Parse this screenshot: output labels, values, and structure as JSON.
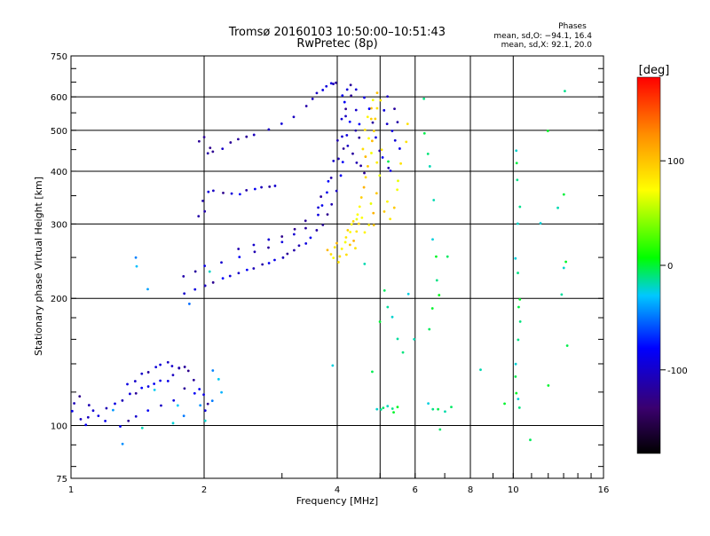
{
  "chart_data": {
    "type": "scatter",
    "title": "Tromsø 20160103 10:50:00–10:51:43",
    "subtitle": "RwPretec (8p)",
    "xlabel": "Frequency [MHz]",
    "ylabel": "Stationary phase Virtual Height [km]",
    "x_scale": "log",
    "y_scale": "log",
    "xlim": [
      1,
      16
    ],
    "ylim": [
      75,
      750
    ],
    "x_ticks": [
      1,
      2,
      4,
      6,
      8,
      10,
      16
    ],
    "x_gridlines": [
      2,
      4,
      5,
      6,
      8,
      10
    ],
    "y_ticks": [
      75,
      100,
      200,
      300,
      400,
      500,
      600,
      750
    ],
    "y_gridlines": [
      100,
      200,
      300,
      400,
      500,
      600
    ],
    "grid": true,
    "phases": {
      "title": "Phases",
      "o_line": "mean, sd,O: −94.1, 16.4",
      "x_line": "mean, sd,X:  92.1, 20.0"
    },
    "colorbar": {
      "label": "[deg]",
      "range": [
        -180,
        180
      ],
      "ticks": [
        100,
        0,
        -100
      ],
      "colors": [
        "#000000",
        "#3a006e",
        "#0000ff",
        "#00c8ff",
        "#00ff00",
        "#ffff00",
        "#ff8c00",
        "#ff0000"
      ]
    },
    "series": [
      {
        "mode": "X",
        "phase": 92,
        "points": [
          [
            4.05,
            250
          ],
          [
            4.1,
            262
          ],
          [
            4.15,
            272
          ],
          [
            4.2,
            280
          ],
          [
            4.25,
            290
          ],
          [
            4.3,
            298
          ],
          [
            4.35,
            303
          ],
          [
            4.4,
            310
          ],
          [
            4.45,
            318
          ],
          [
            4.5,
            330
          ],
          [
            4.55,
            345
          ],
          [
            4.6,
            365
          ],
          [
            4.65,
            385
          ],
          [
            4.7,
            410
          ],
          [
            4.75,
            440
          ],
          [
            4.8,
            470
          ],
          [
            4.85,
            500
          ],
          [
            4.9,
            530
          ],
          [
            4.95,
            560
          ],
          [
            5.0,
            590
          ],
          [
            4.0,
            270
          ],
          [
            4.2,
            255
          ],
          [
            4.4,
            262
          ],
          [
            4.6,
            285
          ],
          [
            4.7,
            300
          ],
          [
            4.8,
            320
          ],
          [
            4.9,
            355
          ],
          [
            5.0,
            390
          ],
          [
            5.2,
            340
          ],
          [
            5.4,
            330
          ],
          [
            5.5,
            380
          ],
          [
            5.6,
            420
          ],
          [
            5.7,
            470
          ],
          [
            5.8,
            520
          ],
          [
            4.65,
            430
          ],
          [
            4.7,
            480
          ],
          [
            4.75,
            530
          ],
          [
            4.8,
            560
          ],
          [
            4.85,
            590
          ],
          [
            4.9,
            610
          ],
          [
            4.6,
            450
          ],
          [
            4.65,
            500
          ],
          [
            4.7,
            540
          ],
          [
            4.3,
            285
          ],
          [
            4.5,
            300
          ],
          [
            4.55,
            310
          ],
          [
            4.75,
            335
          ],
          [
            4.85,
            300
          ],
          [
            5.1,
            320
          ],
          [
            5.3,
            310
          ],
          [
            5.5,
            360
          ],
          [
            4.95,
            420
          ],
          [
            5.05,
            450
          ],
          [
            3.8,
            260
          ],
          [
            3.9,
            250
          ],
          [
            3.85,
            255
          ],
          [
            4.0,
            245
          ],
          [
            3.95,
            265
          ],
          [
            4.25,
            268
          ],
          [
            4.35,
            275
          ],
          [
            4.45,
            290
          ]
        ]
      },
      {
        "mode": "O",
        "phase": -98,
        "points": [
          [
            1.8,
            205
          ],
          [
            1.9,
            210
          ],
          [
            2.0,
            215
          ],
          [
            2.1,
            218
          ],
          [
            2.2,
            222
          ],
          [
            2.3,
            225
          ],
          [
            2.4,
            228
          ],
          [
            2.5,
            232
          ],
          [
            2.6,
            236
          ],
          [
            2.7,
            240
          ],
          [
            2.8,
            242
          ],
          [
            2.9,
            246
          ],
          [
            3.0,
            250
          ],
          [
            3.1,
            255
          ],
          [
            3.2,
            260
          ],
          [
            3.3,
            265
          ],
          [
            3.4,
            270
          ],
          [
            3.5,
            278
          ],
          [
            3.6,
            288
          ],
          [
            3.7,
            300
          ],
          [
            3.8,
            315
          ],
          [
            3.9,
            335
          ],
          [
            4.0,
            360
          ],
          [
            4.05,
            390
          ],
          [
            4.1,
            420
          ],
          [
            4.15,
            450
          ],
          [
            4.2,
            490
          ],
          [
            1.8,
            225
          ],
          [
            1.9,
            232
          ],
          [
            2.0,
            238
          ],
          [
            2.2,
            244
          ],
          [
            2.4,
            250
          ],
          [
            2.6,
            258
          ],
          [
            2.8,
            265
          ],
          [
            3.0,
            272
          ],
          [
            3.2,
            282
          ],
          [
            3.4,
            295
          ],
          [
            3.6,
            315
          ],
          [
            3.7,
            330
          ],
          [
            3.8,
            355
          ],
          [
            3.9,
            385
          ],
          [
            4.0,
            430
          ],
          [
            4.1,
            480
          ],
          [
            4.2,
            540
          ],
          [
            2.4,
            262
          ],
          [
            2.6,
            268
          ],
          [
            2.8,
            274
          ],
          [
            3.0,
            280
          ],
          [
            3.2,
            290
          ],
          [
            3.4,
            305
          ],
          [
            3.6,
            330
          ],
          [
            3.7,
            350
          ],
          [
            3.8,
            380
          ],
          [
            3.9,
            420
          ],
          [
            4.0,
            470
          ],
          [
            4.1,
            530
          ],
          [
            4.15,
            580
          ],
          [
            4.2,
            620
          ],
          [
            2.05,
            440
          ],
          [
            2.1,
            445
          ],
          [
            2.2,
            455
          ],
          [
            2.3,
            465
          ],
          [
            2.4,
            475
          ],
          [
            2.5,
            480
          ],
          [
            2.6,
            490
          ],
          [
            2.8,
            505
          ],
          [
            3.0,
            520
          ],
          [
            3.2,
            540
          ],
          [
            3.4,
            570
          ],
          [
            3.5,
            590
          ],
          [
            3.6,
            610
          ],
          [
            3.7,
            620
          ],
          [
            3.8,
            635
          ],
          [
            3.9,
            645
          ],
          [
            2.0,
            340
          ],
          [
            2.05,
            355
          ],
          [
            2.1,
            360
          ],
          [
            2.2,
            355
          ],
          [
            2.3,
            352
          ],
          [
            2.4,
            355
          ],
          [
            2.5,
            360
          ],
          [
            2.6,
            365
          ],
          [
            2.7,
            368
          ],
          [
            2.8,
            368
          ],
          [
            2.9,
            370
          ],
          [
            1.95,
            470
          ],
          [
            2.0,
            480
          ],
          [
            2.05,
            455
          ],
          [
            1.95,
            315
          ],
          [
            2.0,
            322
          ],
          [
            3.9,
            640
          ],
          [
            4.0,
            650
          ],
          [
            4.1,
            600
          ],
          [
            4.2,
            560
          ],
          [
            4.3,
            520
          ],
          [
            4.4,
            500
          ],
          [
            4.5,
            480
          ],
          [
            4.3,
            600
          ],
          [
            4.4,
            560
          ],
          [
            4.5,
            520
          ],
          [
            4.4,
            620
          ],
          [
            4.3,
            640
          ],
          [
            4.6,
            600
          ],
          [
            4.7,
            560
          ],
          [
            4.8,
            520
          ],
          [
            4.9,
            480
          ],
          [
            5.0,
            450
          ],
          [
            5.1,
            430
          ],
          [
            5.2,
            410
          ],
          [
            5.3,
            400
          ],
          [
            5.1,
            560
          ],
          [
            5.2,
            520
          ],
          [
            5.3,
            500
          ],
          [
            5.4,
            470
          ],
          [
            5.5,
            450
          ],
          [
            5.2,
            600
          ],
          [
            5.4,
            560
          ],
          [
            5.5,
            520
          ],
          [
            4.35,
            440
          ],
          [
            4.45,
            420
          ],
          [
            4.55,
            410
          ],
          [
            4.6,
            395
          ],
          [
            4.25,
            460
          ],
          [
            1.0,
            108
          ],
          [
            1.05,
            103
          ],
          [
            1.08,
            100
          ],
          [
            1.1,
            104
          ],
          [
            1.12,
            108
          ],
          [
            1.15,
            106
          ],
          [
            1.2,
            110
          ],
          [
            1.25,
            113
          ],
          [
            1.3,
            115
          ],
          [
            1.35,
            118
          ],
          [
            1.4,
            120
          ],
          [
            1.45,
            122
          ],
          [
            1.5,
            124
          ],
          [
            1.55,
            125
          ],
          [
            1.6,
            127
          ],
          [
            1.65,
            128
          ],
          [
            1.7,
            132
          ],
          [
            1.75,
            136
          ],
          [
            1.8,
            138
          ],
          [
            1.85,
            135
          ],
          [
            1.9,
            128
          ],
          [
            1.95,
            122
          ],
          [
            2.0,
            118
          ],
          [
            2.05,
            112
          ],
          [
            1.02,
            113
          ],
          [
            1.05,
            118
          ],
          [
            1.1,
            112
          ],
          [
            1.2,
            102
          ],
          [
            1.3,
            100
          ],
          [
            1.35,
            102
          ],
          [
            1.4,
            105
          ],
          [
            1.5,
            108
          ],
          [
            1.6,
            112
          ],
          [
            1.7,
            115
          ],
          [
            1.8,
            122
          ],
          [
            1.9,
            120
          ],
          [
            2.0,
            108
          ],
          [
            1.35,
            125
          ],
          [
            1.4,
            128
          ],
          [
            1.45,
            132
          ],
          [
            1.5,
            134
          ],
          [
            1.55,
            138
          ],
          [
            1.6,
            140
          ],
          [
            1.65,
            141
          ],
          [
            1.7,
            139
          ],
          [
            1.75,
            137
          ]
        ]
      },
      {
        "mode": "scattered",
        "phase": 0,
        "points": [
          [
            4.9,
            110
          ],
          [
            5.0,
            109
          ],
          [
            5.1,
            110
          ],
          [
            5.2,
            111
          ],
          [
            5.3,
            110
          ],
          [
            5.4,
            108
          ],
          [
            5.5,
            110
          ],
          [
            6.4,
            112
          ],
          [
            6.6,
            110
          ],
          [
            6.8,
            109
          ],
          [
            7.0,
            108
          ],
          [
            6.3,
            590
          ],
          [
            6.3,
            490
          ],
          [
            6.4,
            440
          ],
          [
            6.5,
            410
          ],
          [
            6.6,
            340
          ],
          [
            6.6,
            275
          ],
          [
            6.7,
            250
          ],
          [
            6.7,
            220
          ],
          [
            6.8,
            205
          ],
          [
            6.6,
            190
          ],
          [
            6.5,
            170
          ],
          [
            5.1,
            210
          ],
          [
            5.2,
            190
          ],
          [
            5.3,
            180
          ],
          [
            5.5,
            160
          ],
          [
            5.6,
            150
          ],
          [
            5.8,
            205
          ],
          [
            6.0,
            160
          ],
          [
            7.1,
            250
          ],
          [
            7.2,
            110
          ],
          [
            6.8,
            98
          ],
          [
            3.9,
            138
          ],
          [
            4.6,
            240
          ],
          [
            4.8,
            135
          ],
          [
            5.0,
            175
          ],
          [
            10.1,
            450
          ],
          [
            10.2,
            420
          ],
          [
            10.25,
            380
          ],
          [
            10.3,
            330
          ],
          [
            10.2,
            300
          ],
          [
            10.15,
            250
          ],
          [
            10.2,
            230
          ],
          [
            10.3,
            200
          ],
          [
            10.25,
            190
          ],
          [
            10.3,
            175
          ],
          [
            10.2,
            160
          ],
          [
            10.2,
            140
          ],
          [
            10.1,
            130
          ],
          [
            10.2,
            120
          ],
          [
            10.3,
            115
          ],
          [
            10.4,
            110
          ],
          [
            11.0,
            93
          ],
          [
            11.5,
            300
          ],
          [
            12.0,
            500
          ],
          [
            12.0,
            125
          ],
          [
            12.6,
            330
          ],
          [
            13.0,
            620
          ],
          [
            13.1,
            350
          ],
          [
            13.2,
            245
          ],
          [
            13.1,
            235
          ],
          [
            13.2,
            155
          ],
          [
            12.8,
            205
          ],
          [
            8.4,
            136
          ],
          [
            9.5,
            112
          ],
          [
            5.2,
            420
          ]
        ]
      },
      {
        "mode": "low-scattered",
        "phase": -30,
        "points": [
          [
            1.4,
            250
          ],
          [
            1.4,
            238
          ],
          [
            1.5,
            210
          ],
          [
            1.85,
            195
          ],
          [
            2.05,
            230
          ],
          [
            2.2,
            120
          ],
          [
            2.1,
            115
          ],
          [
            1.3,
            90
          ],
          [
            1.25,
            108
          ],
          [
            1.55,
            122
          ],
          [
            1.7,
            102
          ],
          [
            1.8,
            106
          ],
          [
            1.45,
            98
          ],
          [
            2.0,
            103
          ],
          [
            2.1,
            135
          ],
          [
            1.95,
            112
          ],
          [
            1.75,
            112
          ],
          [
            2.15,
            128
          ]
        ]
      }
    ]
  }
}
